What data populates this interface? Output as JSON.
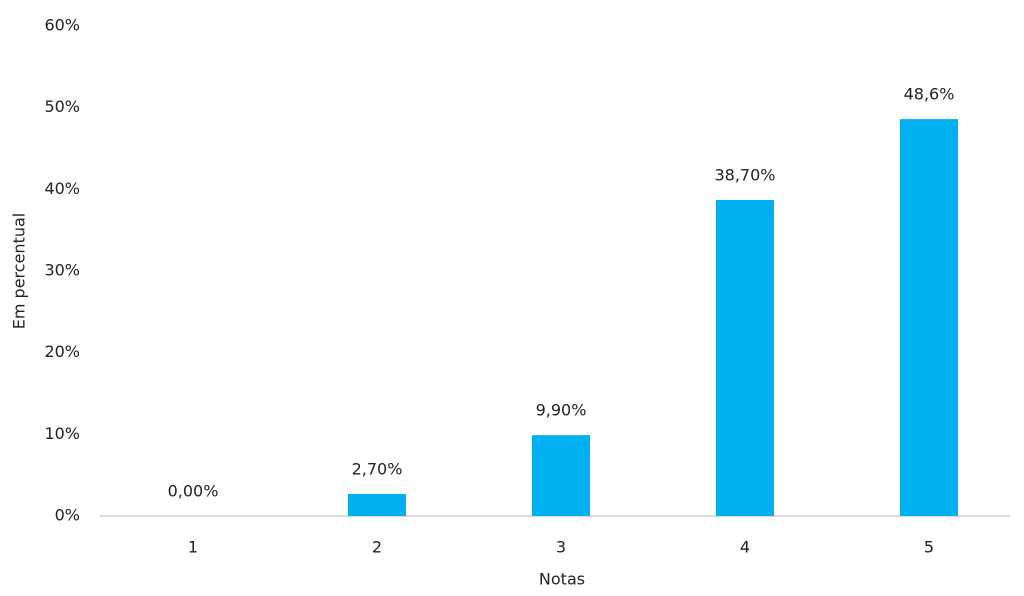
{
  "chart_data": {
    "type": "bar",
    "x_label": "Notas",
    "y_label": "Em percentual",
    "categories": [
      "1",
      "2",
      "3",
      "4",
      "5"
    ],
    "values": [
      0,
      2.7,
      9.9,
      38.7,
      48.6
    ],
    "value_labels": [
      "0,00%",
      "2,70%",
      "9,90%",
      "38,70%",
      "48,6%"
    ],
    "color": "#00b0f0",
    "ylim": [
      0,
      60
    ],
    "yticks": [
      {
        "value": 0,
        "label": "0%"
      },
      {
        "value": 10,
        "label": "10%"
      },
      {
        "value": 20,
        "label": "20%"
      },
      {
        "value": 30,
        "label": "30%"
      },
      {
        "value": 40,
        "label": "40%"
      },
      {
        "value": 50,
        "label": "50%"
      },
      {
        "value": 60,
        "label": "60%"
      }
    ],
    "grid": false
  }
}
